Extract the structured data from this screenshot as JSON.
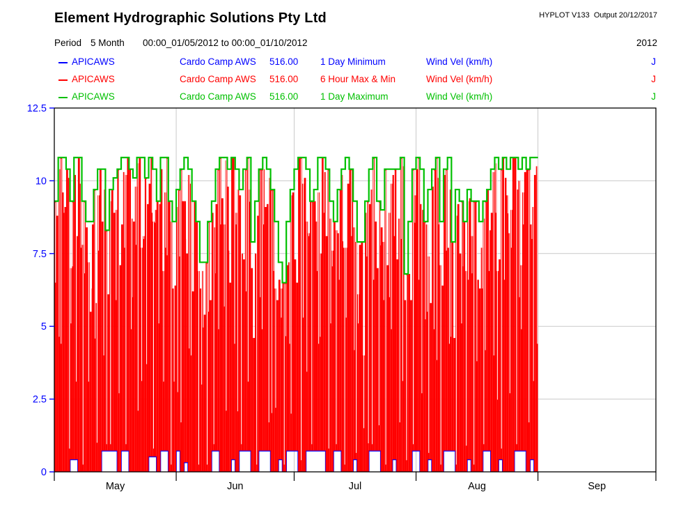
{
  "header": {
    "title": "Element Hydrographic Solutions Pty Ltd",
    "app_info": "HYPLOT V133  Output 20/12/2017",
    "period_label": "Period",
    "period_value": "5 Month",
    "period_range": "00:00_01/05/2012 to 00:00_01/10/2012",
    "year_right": "2012"
  },
  "legend": {
    "rows": [
      {
        "color": "#0000ff",
        "station": "APICAWS",
        "site": "Cardo Camp AWS",
        "number": "516.00",
        "variable": "1 Day Minimum",
        "unit": "Wind Vel (km/h)",
        "quality": "J"
      },
      {
        "color": "#ff0000",
        "station": "APICAWS",
        "site": "Cardo Camp AWS",
        "number": "516.00",
        "variable": "6 Hour Max & Min",
        "unit": "Wind Vel (km/h)",
        "quality": "J"
      },
      {
        "color": "#00c000",
        "station": "APICAWS",
        "site": "Cardo Camp AWS",
        "number": "516.00",
        "variable": "1 Day Maximum",
        "unit": "Wind Vel (km/h)",
        "quality": "J"
      }
    ]
  },
  "chart_data": {
    "type": "line",
    "description": "HYPLOT step-trace plot of wind velocity at Cardo Camp AWS (APICAWS 516.00): blue = 1 day minimum, green = 1 day maximum, red = 6 hour max & min trace filling between. Daily values estimated from plot; data runs 01/05/2012 to 01/09/2012, axis extends to 01/10/2012.",
    "ylabel": "Wind Vel (km/h)",
    "ylim": [
      0,
      12.5
    ],
    "yticks": [
      0,
      2.5,
      5,
      7.5,
      10,
      12.5
    ],
    "ytick_labels": [
      "0",
      "2.5",
      "5",
      "7.5",
      "10",
      "12.5"
    ],
    "x_months": [
      "May",
      "Jun",
      "Jul",
      "Aug",
      "Sep"
    ],
    "month_boundaries_days": [
      0,
      31,
      61,
      92,
      123,
      153
    ],
    "x_start": "00:00_01/05/2012",
    "x_end": "00:00_01/10/2012",
    "data_end_day": 123,
    "grid_color": "#c9c9c9",
    "axis_color": "#000000",
    "ylabel_color": "#0000ff",
    "series": [
      {
        "name": "1 Day Minimum",
        "station": "APICAWS",
        "color": "#0000ff",
        "daily_values": [
          0,
          0,
          0,
          0,
          0.4,
          0.4,
          0,
          0,
          0,
          0,
          0,
          0,
          0.7,
          0.7,
          0.7,
          0.7,
          0,
          0.7,
          0.7,
          0,
          0,
          0,
          0,
          0,
          0.5,
          0.5,
          0,
          0.7,
          0.7,
          0,
          0,
          0.7,
          0,
          0.3,
          0,
          0,
          0,
          0,
          0,
          0,
          0.7,
          0.7,
          0,
          0,
          0,
          0.4,
          0,
          0.7,
          0.7,
          0.7,
          0,
          0,
          0.7,
          0.7,
          0.7,
          0,
          0,
          0.4,
          0,
          0.7,
          0.7,
          0.7,
          0,
          0,
          0.7,
          0.7,
          0.7,
          0.7,
          0.7,
          0,
          0,
          0.7,
          0.7,
          0,
          0,
          0,
          0.4,
          0,
          0,
          0,
          0.7,
          0.7,
          0.7,
          0,
          0,
          0,
          0.4,
          0,
          0,
          0,
          0,
          0.7,
          0.7,
          0,
          0,
          0.4,
          0,
          0,
          0,
          0.7,
          0.7,
          0.7,
          0,
          0,
          0,
          0.4,
          0,
          0,
          0,
          0.7,
          0.7,
          0,
          0,
          0.4,
          0,
          0,
          0,
          0.7,
          0.7,
          0.7,
          0,
          0.4,
          0
        ]
      },
      {
        "name": "1 Day Maximum",
        "station": "APICAWS",
        "color": "#00c000",
        "daily_values": [
          9.3,
          10.8,
          10.8,
          10.4,
          9.3,
          10.8,
          10.8,
          9.3,
          8.6,
          8.6,
          9.7,
          10.4,
          10.4,
          8.3,
          9.7,
          10.1,
          10.4,
          10.8,
          10.8,
          10.4,
          10.1,
          10.8,
          10.8,
          10.1,
          10.8,
          10.4,
          9.3,
          10.8,
          10.8,
          9.3,
          8.6,
          9.7,
          10.4,
          10.8,
          10.4,
          9.3,
          8.6,
          7.2,
          7.2,
          8.6,
          9.3,
          10.4,
          10.8,
          10.8,
          10.4,
          10.8,
          10.4,
          9.7,
          10.4,
          10.8,
          7.9,
          9.3,
          10.4,
          10.8,
          10.4,
          9.7,
          8.6,
          7.2,
          6.5,
          8.6,
          9.7,
          10.4,
          10.8,
          10.8,
          10.4,
          9.3,
          9.7,
          10.8,
          10.8,
          10.4,
          9.3,
          8.6,
          9.7,
          10.4,
          10.8,
          10.4,
          9.3,
          7.9,
          7.9,
          9.3,
          10.4,
          10.8,
          9.3,
          9.0,
          10.4,
          10.4,
          10.4,
          10.4,
          10.8,
          6.8,
          8.6,
          10.4,
          10.8,
          10.4,
          8.6,
          9.7,
          10.4,
          10.8,
          8.6,
          10.4,
          10.8,
          7.9,
          9.7,
          9.3,
          8.6,
          9.7,
          9.3,
          9.3,
          8.6,
          9.3,
          9.7,
          10.4,
          10.8,
          10.4,
          10.8,
          10.4,
          10.8,
          10.8,
          10.4,
          10.8,
          10.4,
          10.8,
          10.8
        ]
      },
      {
        "name": "6 Hour Max & Min",
        "station": "APICAWS",
        "color": "#ff0000",
        "representation": "dense 6-hourly strokes between daily min and daily max; texture patterns estimated from plot",
        "top_drop_a": [
          0,
          0.4,
          1.2,
          0,
          2.3,
          0.6,
          0,
          1.5,
          0.2,
          3.1,
          0,
          0.9,
          1.8
        ],
        "top_drop_b": [
          0.5,
          0,
          1.7,
          0.3,
          0,
          2.7,
          0.9,
          0,
          1.4,
          0.1,
          3.9,
          0,
          0.7,
          2.2,
          0,
          1.1,
          3.3
        ],
        "notch_pos": [
          1.2,
          3.6,
          2.2,
          4.4,
          0.8,
          2.8,
          4.0
        ],
        "notch_depth": [
          2.8,
          6.4,
          1.9,
          9.6,
          4.2,
          7.7,
          3.1,
          10.4,
          5.5,
          2.3,
          8.7
        ]
      }
    ]
  }
}
